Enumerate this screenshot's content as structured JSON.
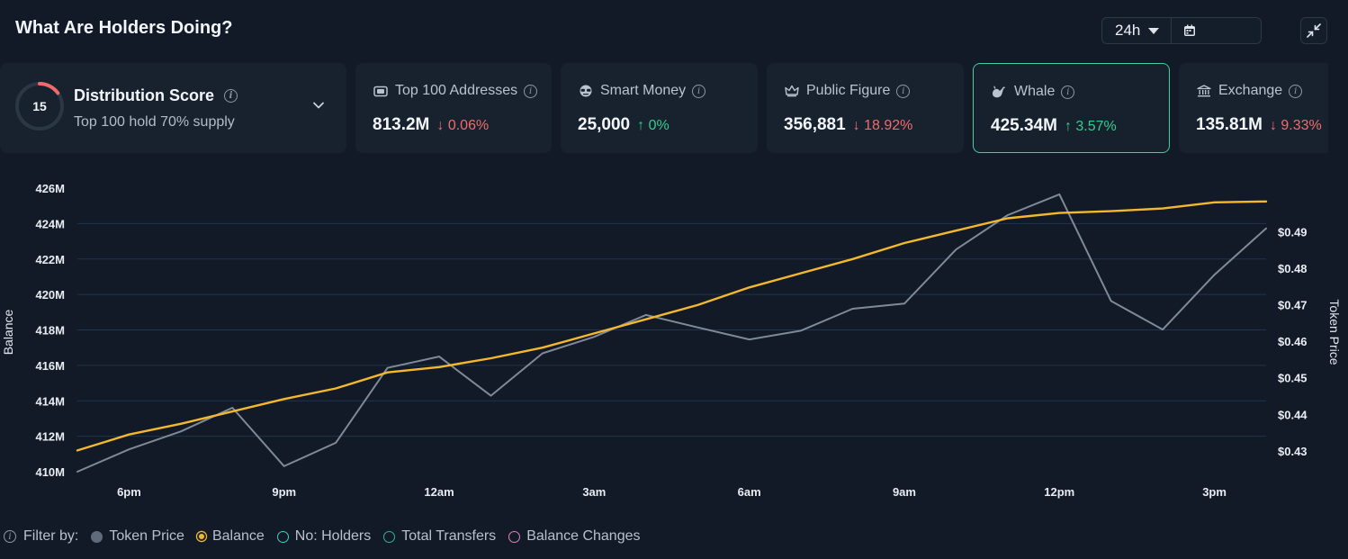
{
  "header": {
    "title": "What Are Holders Doing?",
    "period": "24h",
    "icons": [
      "caret-down-icon",
      "calendar-icon",
      "collapse-icon"
    ]
  },
  "distribution": {
    "score": "15",
    "score_fraction": 0.15,
    "title": "Distribution Score",
    "subtitle": "Top 100 hold 70% supply",
    "ring_color": "#ef6b6b"
  },
  "cards": [
    {
      "label": "Top 100 Addresses",
      "value": "813.2M",
      "change": "0.06%",
      "direction": "down",
      "icon": "wallet-icon"
    },
    {
      "label": "Smart Money",
      "value": "25,000",
      "change": "0%",
      "direction": "up",
      "icon": "sunglasses-icon"
    },
    {
      "label": "Public Figure",
      "value": "356,881",
      "change": "18.92%",
      "direction": "down",
      "icon": "crown-icon"
    },
    {
      "label": "Whale",
      "value": "425.34M",
      "change": "3.57%",
      "direction": "up",
      "icon": "whale-icon",
      "active": true
    },
    {
      "label": "Exchange",
      "value": "135.81M",
      "change": "9.33%",
      "direction": "down",
      "icon": "bank-icon"
    }
  ],
  "colors": {
    "up": "#33cc8c",
    "down": "#f06b6b",
    "active_border": "#3ad29f",
    "balance_line": "#f4b82d",
    "price_line": "#7e8a99",
    "gridline": "#1f3550"
  },
  "chart_data": {
    "type": "line",
    "ylabel": "Balance",
    "y2label": "Token Price",
    "ylim": [
      410,
      426
    ],
    "y2lim": [
      0.4243,
      0.5019
    ],
    "yticks": [
      410,
      412,
      414,
      416,
      418,
      420,
      422,
      424,
      426
    ],
    "ytick_labels": [
      "410M",
      "412M",
      "414M",
      "416M",
      "418M",
      "420M",
      "422M",
      "424M",
      "426M"
    ],
    "y2ticks": [
      0.43,
      0.44,
      0.45,
      0.46,
      0.47,
      0.48,
      0.49
    ],
    "y2tick_labels": [
      "$0.43",
      "$0.44",
      "$0.45",
      "$0.46",
      "$0.47",
      "$0.48",
      "$0.49"
    ],
    "xlim": [
      0,
      23
    ],
    "xticks": [
      1,
      4,
      7,
      10,
      13,
      16,
      19,
      22
    ],
    "xtick_labels": [
      "6pm",
      "9pm",
      "12am",
      "3am",
      "6am",
      "9am",
      "12pm",
      "3pm"
    ],
    "grid": true,
    "series": [
      {
        "name": "Balance",
        "axis": "left",
        "x": [
          0,
          1,
          2,
          3,
          4,
          5,
          6,
          7,
          8,
          9,
          10,
          11,
          12,
          13,
          14,
          15,
          16,
          17,
          18,
          19,
          20,
          21,
          22,
          23
        ],
        "values": [
          411.2,
          412.1,
          412.7,
          413.4,
          414.1,
          414.7,
          415.6,
          415.9,
          416.4,
          417.0,
          417.8,
          418.6,
          419.4,
          420.4,
          421.2,
          422.0,
          422.9,
          423.6,
          424.3,
          424.6,
          424.7,
          424.85,
          425.2,
          425.25
        ]
      },
      {
        "name": "Token Price",
        "axis": "right",
        "x": [
          0,
          1,
          2,
          3,
          4,
          5,
          6,
          7,
          8,
          9,
          10,
          11,
          12,
          13,
          14,
          15,
          16,
          17,
          18,
          19,
          20,
          21,
          22,
          23
        ],
        "values": [
          0.4243,
          0.4304,
          0.4353,
          0.4418,
          0.4258,
          0.4322,
          0.4527,
          0.4558,
          0.4451,
          0.4567,
          0.4612,
          0.4672,
          0.4638,
          0.4605,
          0.4629,
          0.4689,
          0.4703,
          0.4851,
          0.4945,
          0.5002,
          0.471,
          0.4632,
          0.4782,
          0.4909
        ]
      }
    ]
  },
  "legend": {
    "prefix": "Filter by:",
    "items": [
      {
        "label": "Token Price",
        "color": "#5f6b7a",
        "filled": true
      },
      {
        "label": "Balance",
        "color": "#f4b82d",
        "filled": true
      },
      {
        "label": "No: Holders",
        "color": "#3ad2c0",
        "filled": false
      },
      {
        "label": "Total Transfers",
        "color": "#2fb39a",
        "filled": false
      },
      {
        "label": "Balance Changes",
        "color": "#e77fc3",
        "filled": false
      }
    ]
  }
}
